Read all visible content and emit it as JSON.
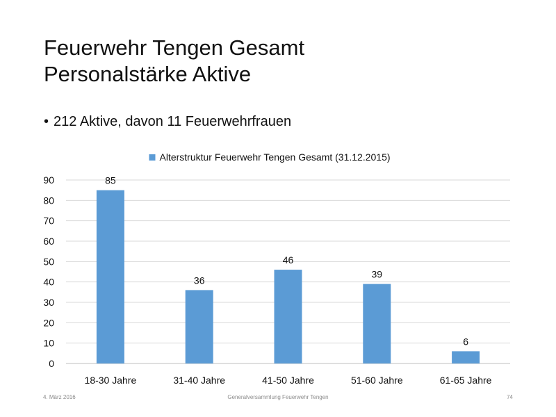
{
  "slide": {
    "title_line1": "Feuerwehr Tengen Gesamt",
    "title_line2": "Personalstärke Aktive",
    "bullet": "212 Aktive, davon 11 Feuerwehrfrauen",
    "bullet_marker": "•"
  },
  "footer": {
    "date": "4. März 2016",
    "center": "Generalversammlung Feuerwehr Tengen",
    "page": "74"
  },
  "chart_data": {
    "type": "bar",
    "categories": [
      "18-30 Jahre",
      "31-40 Jahre",
      "41-50 Jahre",
      "51-60 Jahre",
      "61-65 Jahre"
    ],
    "series": [
      {
        "name": "Alterstruktur Feuerwehr Tengen Gesamt (31.12.2015)",
        "values": [
          85,
          36,
          46,
          39,
          6
        ]
      }
    ],
    "ylim": [
      0,
      90
    ],
    "yticks": [
      0,
      10,
      20,
      30,
      40,
      50,
      60,
      70,
      80,
      90
    ],
    "grid": true,
    "legend": "top-center",
    "data_labels": true,
    "colors": {
      "bar": "#5b9bd5",
      "grid": "#d9d9d9",
      "axis": "#bfbfbf",
      "text": "#111111"
    }
  }
}
